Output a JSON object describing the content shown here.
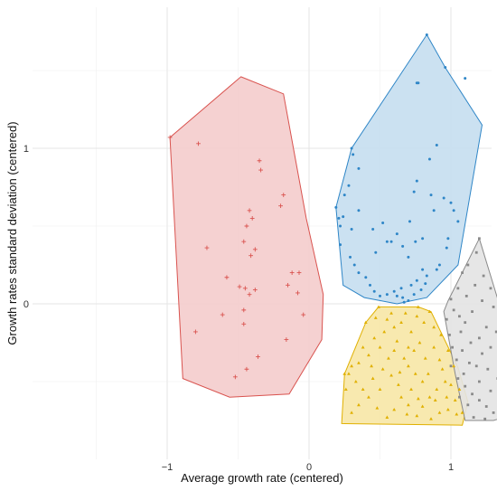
{
  "chart_data": {
    "type": "scatter",
    "xlabel": "Average growth rate (centered)",
    "ylabel": "Growth rates standard deviation (centered)",
    "xlim": [
      -1.2,
      1.3
    ],
    "ylim": [
      -0.8,
      1.85
    ],
    "x_ticks": [
      {
        "value": -1,
        "label": "−1"
      },
      {
        "value": 0,
        "label": "0"
      },
      {
        "value": 1,
        "label": "1"
      }
    ],
    "y_ticks": [
      {
        "value": 0,
        "label": "0"
      },
      {
        "value": 1,
        "label": "1"
      }
    ],
    "grid": true,
    "legend": "none",
    "clusters": [
      {
        "color": "#d9534f",
        "fill": "#f4cccc",
        "marker": "plus",
        "hull": [
          [
            -0.48,
            1.46
          ],
          [
            -0.18,
            1.35
          ],
          [
            -0.02,
            0.55
          ],
          [
            0.1,
            0.06
          ],
          [
            0.09,
            -0.23
          ],
          [
            -0.14,
            -0.58
          ],
          [
            -0.56,
            -0.6
          ],
          [
            -0.89,
            -0.48
          ],
          [
            -0.98,
            1.07
          ]
        ],
        "points": [
          [
            -0.98,
            1.07
          ],
          [
            -0.78,
            1.03
          ],
          [
            -0.35,
            0.92
          ],
          [
            -0.34,
            0.86
          ],
          [
            -0.18,
            0.7
          ],
          [
            -0.2,
            0.63
          ],
          [
            -0.42,
            0.6
          ],
          [
            -0.4,
            0.55
          ],
          [
            -0.44,
            0.5
          ],
          [
            -0.46,
            0.4
          ],
          [
            -0.38,
            0.35
          ],
          [
            -0.72,
            0.36
          ],
          [
            -0.41,
            0.31
          ],
          [
            -0.58,
            0.17
          ],
          [
            -0.12,
            0.2
          ],
          [
            -0.07,
            0.2
          ],
          [
            -0.15,
            0.12
          ],
          [
            -0.45,
            0.1
          ],
          [
            -0.49,
            0.11
          ],
          [
            -0.38,
            0.09
          ],
          [
            -0.42,
            0.06
          ],
          [
            -0.08,
            0.07
          ],
          [
            -0.46,
            -0.04
          ],
          [
            -0.61,
            -0.07
          ],
          [
            -0.46,
            -0.13
          ],
          [
            -0.04,
            -0.07
          ],
          [
            -0.8,
            -0.18
          ],
          [
            -0.16,
            -0.23
          ],
          [
            -0.36,
            -0.34
          ],
          [
            -0.44,
            -0.42
          ],
          [
            -0.52,
            -0.47
          ]
        ]
      },
      {
        "color": "#2f86c7",
        "fill": "#c5def0",
        "marker": "dot",
        "hull": [
          [
            0.83,
            1.73
          ],
          [
            0.96,
            1.52
          ],
          [
            1.22,
            1.15
          ],
          [
            1.05,
            0.25
          ],
          [
            0.83,
            0.04
          ],
          [
            0.62,
            0.0
          ],
          [
            0.39,
            0.04
          ],
          [
            0.24,
            0.12
          ],
          [
            0.19,
            0.62
          ],
          [
            0.3,
            1.0
          ]
        ],
        "points": [
          [
            0.83,
            1.73
          ],
          [
            0.96,
            1.52
          ],
          [
            0.76,
            1.42
          ],
          [
            0.77,
            1.42
          ],
          [
            1.1,
            1.45
          ],
          [
            0.9,
            1.02
          ],
          [
            0.3,
            1.0
          ],
          [
            0.31,
            0.96
          ],
          [
            0.35,
            0.87
          ],
          [
            0.28,
            0.76
          ],
          [
            0.25,
            0.7
          ],
          [
            0.35,
            0.6
          ],
          [
            0.85,
            0.93
          ],
          [
            0.76,
            0.79
          ],
          [
            0.74,
            0.72
          ],
          [
            0.86,
            0.7
          ],
          [
            0.95,
            0.68
          ],
          [
            1.0,
            0.65
          ],
          [
            0.88,
            0.6
          ],
          [
            1.02,
            0.6
          ],
          [
            1.05,
            0.53
          ],
          [
            0.21,
            0.55
          ],
          [
            0.24,
            0.56
          ],
          [
            0.19,
            0.62
          ],
          [
            0.22,
            0.5
          ],
          [
            0.3,
            0.48
          ],
          [
            0.52,
            0.52
          ],
          [
            0.45,
            0.48
          ],
          [
            0.55,
            0.4
          ],
          [
            0.62,
            0.45
          ],
          [
            0.71,
            0.53
          ],
          [
            0.75,
            0.4
          ],
          [
            0.8,
            0.42
          ],
          [
            0.98,
            0.42
          ],
          [
            0.97,
            0.36
          ],
          [
            0.58,
            0.4
          ],
          [
            0.66,
            0.37
          ],
          [
            0.7,
            0.3
          ],
          [
            0.47,
            0.33
          ],
          [
            0.22,
            0.38
          ],
          [
            0.29,
            0.3
          ],
          [
            0.32,
            0.25
          ],
          [
            0.35,
            0.2
          ],
          [
            0.4,
            0.17
          ],
          [
            0.43,
            0.12
          ],
          [
            0.46,
            0.08
          ],
          [
            0.5,
            0.05
          ],
          [
            0.55,
            0.06
          ],
          [
            0.62,
            0.05
          ],
          [
            0.66,
            0.04
          ],
          [
            0.7,
            0.02
          ],
          [
            0.65,
            0.1
          ],
          [
            0.72,
            0.12
          ],
          [
            0.76,
            0.15
          ],
          [
            0.82,
            0.13
          ],
          [
            0.83,
            0.18
          ],
          [
            0.8,
            0.22
          ],
          [
            0.9,
            0.22
          ],
          [
            0.92,
            0.25
          ],
          [
            0.79,
            0.09
          ],
          [
            0.74,
            0.06
          ],
          [
            0.67,
            0.01
          ],
          [
            0.6,
            0.08
          ]
        ]
      },
      {
        "color": "#e0b000",
        "fill": "#f7e7a6",
        "marker": "triangle",
        "hull": [
          [
            0.49,
            -0.02
          ],
          [
            0.77,
            -0.02
          ],
          [
            0.86,
            -0.05
          ],
          [
            1.05,
            -0.41
          ],
          [
            1.12,
            -0.63
          ],
          [
            1.08,
            -0.78
          ],
          [
            0.23,
            -0.77
          ],
          [
            0.25,
            -0.45
          ],
          [
            0.4,
            -0.12
          ]
        ],
        "points": [
          [
            0.49,
            -0.02
          ],
          [
            0.77,
            -0.02
          ],
          [
            0.4,
            -0.12
          ],
          [
            0.47,
            -0.09
          ],
          [
            0.55,
            -0.1
          ],
          [
            0.6,
            -0.15
          ],
          [
            0.65,
            -0.12
          ],
          [
            0.72,
            -0.18
          ],
          [
            0.85,
            -0.05
          ],
          [
            0.78,
            -0.25
          ],
          [
            0.7,
            -0.28
          ],
          [
            0.6,
            -0.3
          ],
          [
            0.5,
            -0.28
          ],
          [
            0.42,
            -0.33
          ],
          [
            0.35,
            -0.38
          ],
          [
            0.3,
            -0.4
          ],
          [
            0.28,
            -0.45
          ],
          [
            0.33,
            -0.5
          ],
          [
            0.38,
            -0.55
          ],
          [
            0.45,
            -0.48
          ],
          [
            0.52,
            -0.42
          ],
          [
            0.58,
            -0.46
          ],
          [
            0.63,
            -0.52
          ],
          [
            0.7,
            -0.4
          ],
          [
            0.75,
            -0.45
          ],
          [
            0.82,
            -0.35
          ],
          [
            0.88,
            -0.28
          ],
          [
            0.93,
            -0.2
          ],
          [
            0.98,
            -0.3
          ],
          [
            1.02,
            -0.4
          ],
          [
            0.96,
            -0.5
          ],
          [
            0.9,
            -0.55
          ],
          [
            0.85,
            -0.6
          ],
          [
            0.8,
            -0.66
          ],
          [
            0.76,
            -0.72
          ],
          [
            0.7,
            -0.65
          ],
          [
            0.65,
            -0.6
          ],
          [
            0.6,
            -0.68
          ],
          [
            0.55,
            -0.73
          ],
          [
            0.48,
            -0.67
          ],
          [
            0.42,
            -0.6
          ],
          [
            0.35,
            -0.65
          ],
          [
            0.3,
            -0.7
          ],
          [
            0.25,
            -0.45
          ],
          [
            0.26,
            -0.55
          ],
          [
            0.86,
            -0.74
          ],
          [
            0.92,
            -0.7
          ],
          [
            0.98,
            -0.68
          ],
          [
            1.03,
            -0.62
          ],
          [
            1.06,
            -0.55
          ],
          [
            1.08,
            -0.7
          ],
          [
            0.84,
            -0.45
          ],
          [
            0.72,
            -0.55
          ],
          [
            0.67,
            -0.35
          ],
          [
            0.62,
            -0.24
          ],
          [
            0.56,
            -0.35
          ],
          [
            0.5,
            -0.55
          ],
          [
            0.44,
            -0.4
          ],
          [
            0.38,
            -0.28
          ],
          [
            0.8,
            -0.5
          ],
          [
            0.74,
            -0.3
          ],
          [
            0.94,
            -0.42
          ],
          [
            1.0,
            -0.52
          ],
          [
            0.89,
            -0.62
          ],
          [
            0.81,
            -0.12
          ],
          [
            0.76,
            -0.08
          ],
          [
            0.68,
            -0.06
          ],
          [
            0.58,
            -0.06
          ],
          [
            0.53,
            -0.18
          ],
          [
            0.46,
            -0.22
          ],
          [
            0.64,
            -0.44
          ],
          [
            0.69,
            -0.71
          ],
          [
            0.77,
            -0.61
          ],
          [
            0.97,
            -0.6
          ],
          [
            1.04,
            -0.71
          ],
          [
            0.92,
            -0.36
          ],
          [
            0.88,
            -0.15
          ]
        ]
      },
      {
        "color": "#8a8a8a",
        "fill": "#e3e3e3",
        "marker": "square",
        "hull": [
          [
            1.2,
            0.42
          ],
          [
            1.38,
            -0.12
          ],
          [
            1.52,
            -0.56
          ],
          [
            1.49,
            -0.7
          ],
          [
            1.3,
            -0.75
          ],
          [
            1.1,
            -0.75
          ],
          [
            1.03,
            -0.45
          ],
          [
            0.95,
            -0.05
          ],
          [
            0.98,
            0.02
          ]
        ],
        "points": [
          [
            1.2,
            0.42
          ],
          [
            1.18,
            0.33
          ],
          [
            1.12,
            0.25
          ],
          [
            1.08,
            0.2
          ],
          [
            1.05,
            0.1
          ],
          [
            1.0,
            0.03
          ],
          [
            1.02,
            -0.04
          ],
          [
            1.06,
            -0.08
          ],
          [
            1.1,
            -0.12
          ],
          [
            1.15,
            -0.05
          ],
          [
            1.22,
            0.02
          ],
          [
            1.28,
            0.1
          ],
          [
            1.3,
            -0.02
          ],
          [
            1.25,
            -0.15
          ],
          [
            1.2,
            -0.22
          ],
          [
            1.14,
            -0.25
          ],
          [
            1.08,
            -0.3
          ],
          [
            1.04,
            -0.36
          ],
          [
            1.0,
            -0.4
          ],
          [
            1.05,
            -0.48
          ],
          [
            1.1,
            -0.53
          ],
          [
            1.15,
            -0.58
          ],
          [
            1.2,
            -0.62
          ],
          [
            1.25,
            -0.66
          ],
          [
            1.3,
            -0.7
          ],
          [
            1.35,
            -0.62
          ],
          [
            1.4,
            -0.55
          ],
          [
            1.45,
            -0.5
          ],
          [
            1.48,
            -0.4
          ],
          [
            1.42,
            -0.32
          ],
          [
            1.36,
            -0.25
          ],
          [
            1.32,
            -0.18
          ],
          [
            1.38,
            -0.1
          ],
          [
            1.26,
            -0.42
          ],
          [
            1.18,
            -0.4
          ],
          [
            1.12,
            -0.65
          ],
          [
            1.16,
            -0.73
          ],
          [
            1.24,
            -0.74
          ],
          [
            1.33,
            -0.48
          ],
          [
            1.4,
            -0.65
          ],
          [
            1.46,
            -0.68
          ],
          [
            1.5,
            -0.56
          ],
          [
            0.97,
            -0.1
          ],
          [
            0.99,
            -0.2
          ],
          [
            1.01,
            -0.28
          ],
          [
            1.07,
            -0.18
          ],
          [
            1.13,
            -0.38
          ],
          [
            1.22,
            -0.32
          ],
          [
            1.28,
            -0.28
          ],
          [
            1.34,
            -0.36
          ],
          [
            1.2,
            -0.5
          ],
          [
            1.28,
            -0.56
          ],
          [
            1.06,
            -0.6
          ],
          [
            1.17,
            0.12
          ],
          [
            1.23,
            0.18
          ],
          [
            1.11,
            0.05
          ],
          [
            1.09,
            -0.45
          ],
          [
            1.38,
            -0.42
          ],
          [
            1.44,
            -0.2
          ]
        ]
      }
    ]
  }
}
